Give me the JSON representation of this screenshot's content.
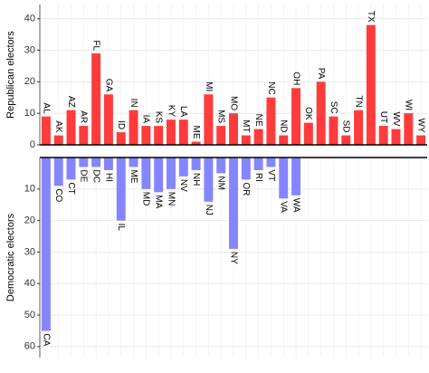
{
  "chart_data": [
    {
      "type": "bar",
      "y_label": "Republican electors",
      "color": "#ff3b3b",
      "categories": [
        "AL",
        "AK",
        "AZ",
        "AR",
        "FL",
        "GA",
        "ID",
        "IN",
        "IA",
        "KS",
        "KY",
        "LA",
        "ME",
        "MI",
        "MS",
        "MO",
        "MT",
        "NE",
        "NC",
        "ND",
        "OH",
        "OK",
        "PA",
        "SC",
        "SD",
        "TN",
        "TX",
        "UT",
        "WV",
        "WI",
        "WY"
      ],
      "values": [
        9,
        3,
        11,
        6,
        29,
        16,
        4,
        11,
        6,
        6,
        8,
        8,
        1,
        16,
        6,
        10,
        3,
        5,
        15,
        3,
        18,
        7,
        20,
        9,
        3,
        11,
        38,
        6,
        5,
        10,
        3
      ],
      "ylim": [
        0,
        44.5
      ],
      "yticks": [
        0,
        10,
        20,
        30,
        40
      ],
      "y_inverted": false,
      "grid": true
    },
    {
      "type": "bar",
      "y_label": "Democratic electors",
      "color": "#8585ff",
      "categories": [
        "CA",
        "CO",
        "CT",
        "DE",
        "DC",
        "HI",
        "IL",
        "ME",
        "MD",
        "MA",
        "MN",
        "NV",
        "NH",
        "NJ",
        "NM",
        "NY",
        "OR",
        "RI",
        "VT",
        "VA",
        "WA"
      ],
      "values": [
        55,
        9,
        7,
        3,
        3,
        4,
        20,
        3,
        10,
        11,
        10,
        6,
        4,
        14,
        5,
        29,
        7,
        4,
        3,
        13,
        12
      ],
      "ylim": [
        0,
        63.5
      ],
      "yticks": [
        10,
        20,
        30,
        40,
        50,
        60
      ],
      "y_inverted": true,
      "grid": true
    }
  ]
}
